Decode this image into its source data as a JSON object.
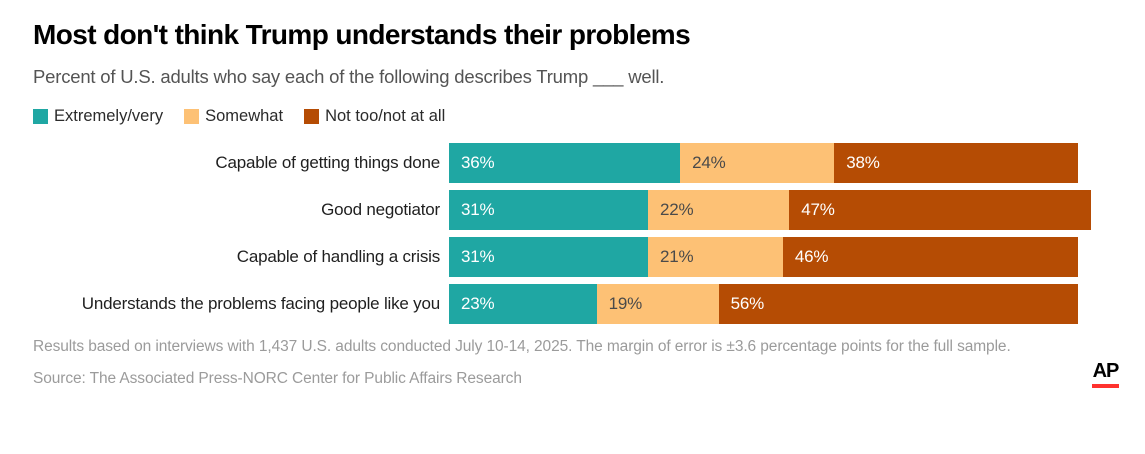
{
  "header": {
    "title": "Most don't think Trump understands their problems",
    "subtitle": "Percent of U.S. adults who say each of the following describes Trump ___ well."
  },
  "chart_data": {
    "type": "bar",
    "orientation": "horizontal",
    "stacked": true,
    "title": "Most don't think Trump understands their problems",
    "xlabel": "",
    "ylabel": "",
    "xlim": [
      0,
      100
    ],
    "grid": false,
    "legend_position": "top",
    "value_suffix": "%",
    "categories": [
      "Capable of getting things done",
      "Good negotiator",
      "Capable of handling a crisis",
      "Understands the problems facing people like you"
    ],
    "series": [
      {
        "name": "Extremely/very",
        "color": "#1fa7a3",
        "label_color": "#ffffff",
        "values": [
          36,
          31,
          31,
          23
        ]
      },
      {
        "name": "Somewhat",
        "color": "#fdc175",
        "label_color": "#4a4a4a",
        "values": [
          24,
          22,
          21,
          19
        ]
      },
      {
        "name": "Not too/not at all",
        "color": "#b54c04",
        "label_color": "#ffffff",
        "values": [
          38,
          47,
          46,
          56
        ]
      }
    ]
  },
  "footer": {
    "note": "Results based on interviews with 1,437 U.S. adults conducted July 10-14, 2025. The margin of error is ±3.6 percentage points for the full sample.",
    "source": "Source: The Associated Press-NORC Center for Public Affairs Research",
    "logo_text": "AP",
    "logo_underline_color": "#ff322e"
  }
}
